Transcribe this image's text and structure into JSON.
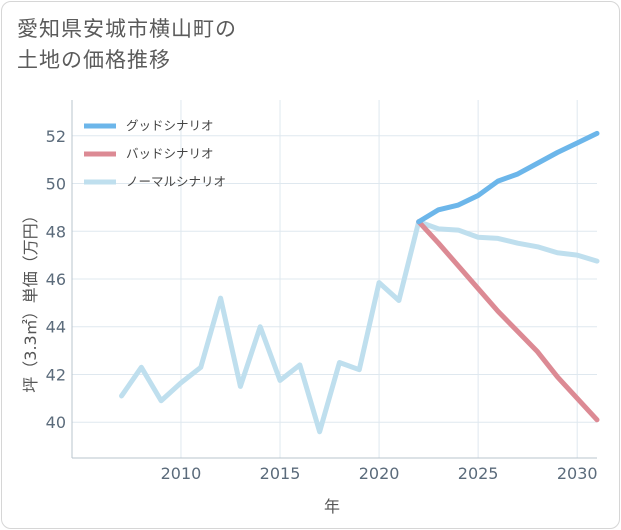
{
  "title_line1": "愛知県安城市横山町の",
  "title_line2": "土地の価格推移",
  "chart_data": {
    "type": "line",
    "title": "愛知県安城市横山町の土地の価格推移",
    "xlabel": "年",
    "ylabel": "坪（3.3㎡）単価（万円）",
    "xlim": [
      2004.5,
      2031
    ],
    "ylim": [
      38.5,
      53.5
    ],
    "x_ticks": [
      2010,
      2015,
      2020,
      2025,
      2030
    ],
    "y_ticks": [
      40,
      42,
      44,
      46,
      48,
      50,
      52
    ],
    "grid": true,
    "legend_position": "top-left",
    "series": [
      {
        "name": "グッドシナリオ",
        "color": "#6cb6ea",
        "x": [
          2022,
          2023,
          2024,
          2025,
          2026,
          2027,
          2028,
          2029,
          2030,
          2031
        ],
        "values": [
          48.4,
          48.9,
          49.1,
          49.5,
          50.1,
          50.4,
          50.85,
          51.3,
          51.7,
          52.1
        ]
      },
      {
        "name": "バッドシナリオ",
        "color": "#dc8a94",
        "x": [
          2022,
          2023,
          2024,
          2025,
          2026,
          2027,
          2028,
          2029,
          2030,
          2031
        ],
        "values": [
          48.4,
          47.5,
          46.55,
          45.6,
          44.65,
          43.8,
          42.95,
          41.9,
          41.0,
          40.1
        ]
      },
      {
        "name": "ノーマルシナリオ",
        "color": "#bfdfee",
        "x": [
          2007,
          2008,
          2009,
          2010,
          2011,
          2012,
          2013,
          2014,
          2015,
          2016,
          2017,
          2018,
          2019,
          2020,
          2021,
          2022,
          2023,
          2024,
          2025,
          2026,
          2027,
          2028,
          2029,
          2030,
          2031
        ],
        "values": [
          41.1,
          42.3,
          40.9,
          41.65,
          42.3,
          45.2,
          41.5,
          44.0,
          41.75,
          42.4,
          39.6,
          42.5,
          42.2,
          45.85,
          45.1,
          48.4,
          48.1,
          48.05,
          47.75,
          47.7,
          47.5,
          47.35,
          47.1,
          47.0,
          46.75
        ]
      }
    ]
  }
}
